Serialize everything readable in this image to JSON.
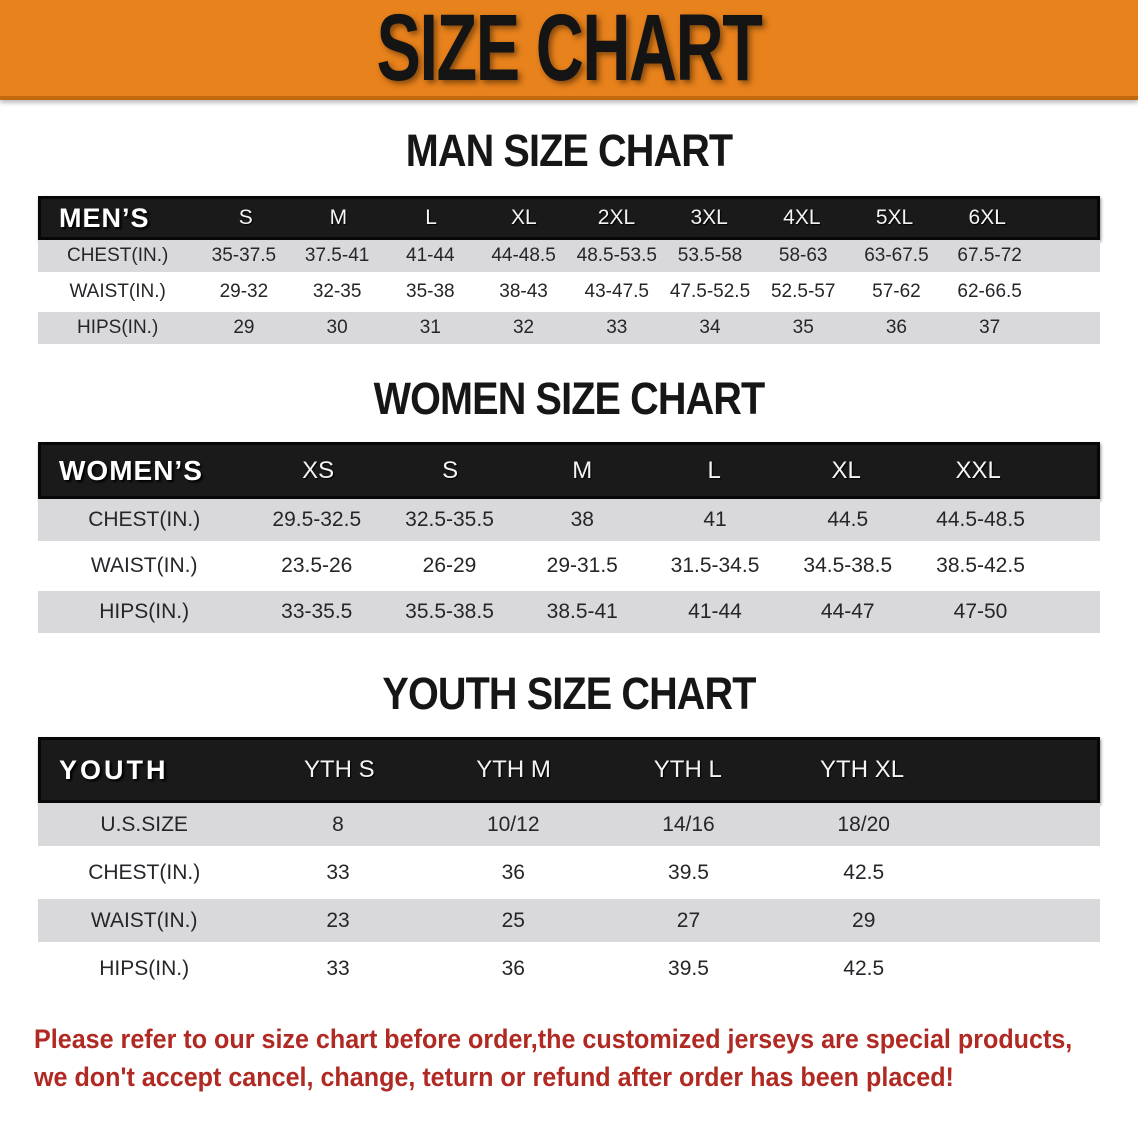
{
  "banner": {
    "title": "SIZE CHART",
    "bg_color": "#E8821C"
  },
  "sections": [
    {
      "heading": "MAN SIZE CHART",
      "corner_label": "MEN’S",
      "columns": [
        "S",
        "M",
        "L",
        "XL",
        "2XL",
        "3XL",
        "4XL",
        "5XL",
        "6XL"
      ],
      "rows": [
        {
          "label": "CHEST(IN.)",
          "values": [
            "35-37.5",
            "37.5-41",
            "41-44",
            "44-48.5",
            "48.5-53.5",
            "53.5-58",
            "58-63",
            "63-67.5",
            "67.5-72"
          ]
        },
        {
          "label": "WAIST(IN.)",
          "values": [
            "29-32",
            "32-35",
            "35-38",
            "38-43",
            "43-47.5",
            "47.5-52.5",
            "52.5-57",
            "57-62",
            "62-66.5"
          ]
        },
        {
          "label": "HIPS(IN.)",
          "values": [
            "29",
            "30",
            "31",
            "32",
            "33",
            "34",
            "35",
            "36",
            "37"
          ]
        }
      ]
    },
    {
      "heading": "WOMEN SIZE CHART",
      "corner_label": "WOMEN’S",
      "columns": [
        "XS",
        "S",
        "M",
        "L",
        "XL",
        "XXL"
      ],
      "rows": [
        {
          "label": "CHEST(IN.)",
          "values": [
            "29.5-32.5",
            "32.5-35.5",
            "38",
            "41",
            "44.5",
            "44.5-48.5"
          ]
        },
        {
          "label": "WAIST(IN.)",
          "values": [
            "23.5-26",
            "26-29",
            "29-31.5",
            "31.5-34.5",
            "34.5-38.5",
            "38.5-42.5"
          ]
        },
        {
          "label": "HIPS(IN.)",
          "values": [
            "33-35.5",
            "35.5-38.5",
            "38.5-41",
            "41-44",
            "44-47",
            "47-50"
          ]
        }
      ]
    },
    {
      "heading": "YOUTH SIZE CHART",
      "corner_label": "YOUTH",
      "columns": [
        "YTH S",
        "YTH M",
        "YTH L",
        "YTH XL"
      ],
      "rows": [
        {
          "label": "U.S.SIZE",
          "values": [
            "8",
            "10/12",
            "14/16",
            "18/20"
          ]
        },
        {
          "label": "CHEST(IN.)",
          "values": [
            "33",
            "36",
            "39.5",
            "42.5"
          ]
        },
        {
          "label": "WAIST(IN.)",
          "values": [
            "23",
            "25",
            "27",
            "29"
          ]
        },
        {
          "label": "HIPS(IN.)",
          "values": [
            "33",
            "36",
            "39.5",
            "42.5"
          ]
        }
      ]
    }
  ],
  "footer": {
    "line1": "Please refer to our size chart before order,the customized jerseys are special products,",
    "line2": "we don't accept cancel, change, teturn or refund after order has been placed!",
    "text_color": "#B02A23"
  }
}
